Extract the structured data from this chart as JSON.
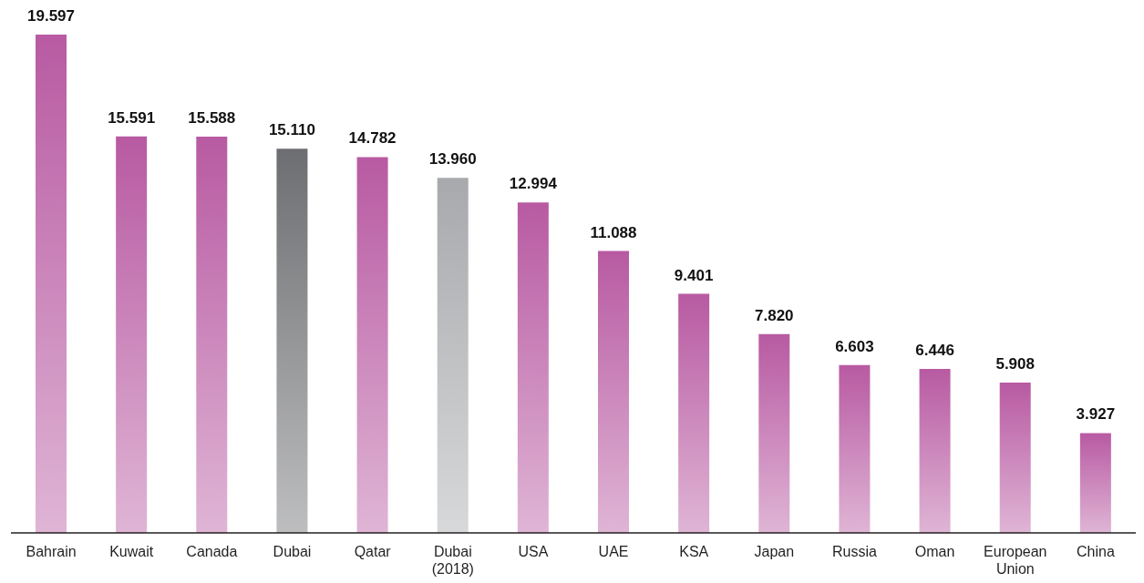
{
  "chart_data": {
    "type": "bar",
    "categories": [
      "Bahrain",
      "Kuwait",
      "Canada",
      "Dubai",
      "Qatar",
      "Dubai (2018)",
      "USA",
      "UAE",
      "KSA",
      "Japan",
      "Russia",
      "Oman",
      "European Union",
      "China"
    ],
    "values": [
      19.597,
      15.591,
      15.588,
      15.11,
      14.782,
      13.96,
      12.994,
      11.088,
      9.401,
      7.82,
      6.603,
      6.446,
      5.908,
      3.927
    ],
    "value_labels": [
      "19.597",
      "15.591",
      "15.588",
      "15.110",
      "14.782",
      "13.960",
      "12.994",
      "11.088",
      "9.401",
      "7.820",
      "6.603",
      "6.446",
      "5.908",
      "3.927"
    ],
    "colors": [
      "#b85aa2",
      "#b85aa2",
      "#b85aa2",
      "#6d6e71",
      "#b85aa2",
      "#a7a9ac",
      "#b85aa2",
      "#b85aa2",
      "#b85aa2",
      "#b85aa2",
      "#b85aa2",
      "#b85aa2",
      "#b85aa2",
      "#b85aa2"
    ],
    "tick_labels": "x"
  }
}
